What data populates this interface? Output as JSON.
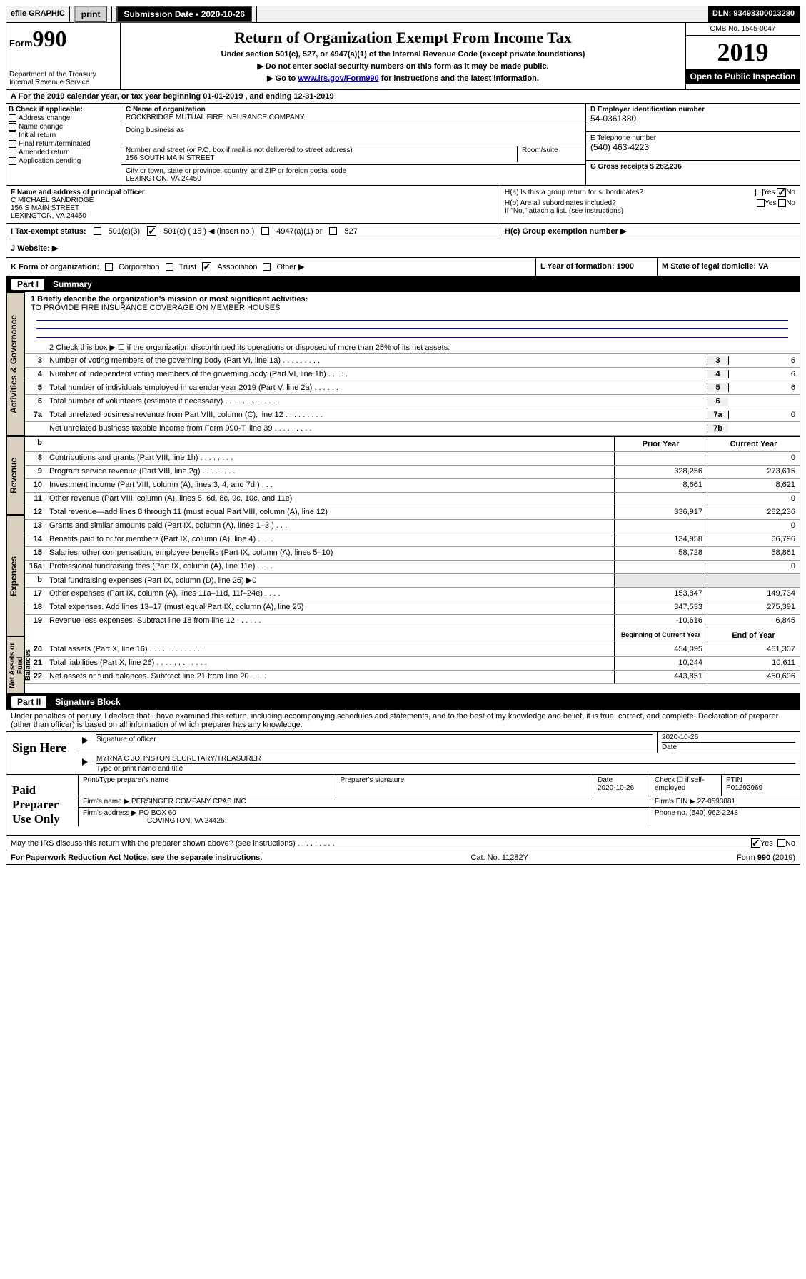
{
  "top": {
    "efile": "efile GRAPHIC",
    "print": "print",
    "subdate_label": "Submission Date • 2020-10-26",
    "dln": "DLN: 93493300013280"
  },
  "header": {
    "form_prefix": "Form",
    "form_no": "990",
    "dept": "Department of the Treasury\nInternal Revenue Service",
    "title": "Return of Organization Exempt From Income Tax",
    "line1": "Under section 501(c), 527, or 4947(a)(1) of the Internal Revenue Code (except private foundations)",
    "line2": "▶ Do not enter social security numbers on this form as it may be made public.",
    "line3_pre": "▶ Go to ",
    "line3_link": "www.irs.gov/Form990",
    "line3_post": " for instructions and the latest information.",
    "omb": "OMB No. 1545-0047",
    "year": "2019",
    "open": "Open to Public Inspection"
  },
  "rowA": "A For the 2019 calendar year, or tax year beginning 01-01-2019   , and ending 12-31-2019",
  "b_checks": [
    "Address change",
    "Name change",
    "Initial return",
    "Final return/terminated",
    "Amended return",
    "Application pending"
  ],
  "b_label": "B Check if applicable:",
  "c": {
    "name_lbl": "C Name of organization",
    "name": "ROCKBRIDGE MUTUAL FIRE INSURANCE COMPANY",
    "dba_lbl": "Doing business as",
    "addr_lbl": "Number and street (or P.O. box if mail is not delivered to street address)",
    "room_lbl": "Room/suite",
    "addr": "156 SOUTH MAIN STREET",
    "city_lbl": "City or town, state or province, country, and ZIP or foreign postal code",
    "city": "LEXINGTON, VA  24450"
  },
  "d": {
    "lbl": "D Employer identification number",
    "val": "54-0361880"
  },
  "e": {
    "lbl": "E Telephone number",
    "val": "(540) 463-4223"
  },
  "g": {
    "lbl": "G Gross receipts $ 282,236"
  },
  "f": {
    "lbl": "F  Name and address of principal officer:",
    "name": "C MICHAEL SANDRIDGE",
    "addr1": "156 S MAIN STREET",
    "addr2": "LEXINGTON, VA  24450"
  },
  "h": {
    "a": "H(a)  Is this a group return for subordinates?",
    "b": "H(b)  Are all subordinates included?",
    "note": "If \"No,\" attach a list. (see instructions)",
    "c": "H(c)  Group exemption number ▶"
  },
  "i": {
    "lbl": "I    Tax-exempt status:",
    "opts": [
      "501(c)(3)",
      "501(c) ( 15 ) ◀ (insert no.)",
      "4947(a)(1) or",
      "527"
    ]
  },
  "j": {
    "lbl": "J    Website: ▶"
  },
  "k": {
    "lbl": "K Form of organization:",
    "opts": [
      "Corporation",
      "Trust",
      "Association",
      "Other ▶"
    ]
  },
  "l": "L Year of formation: 1900",
  "m": "M State of legal domicile: VA",
  "part1": {
    "no": "Part I",
    "title": "Summary"
  },
  "p1_1_lbl": "1  Briefly describe the organization's mission or most significant activities:",
  "p1_1_val": "TO PROVIDE FIRE INSURANCE COVERAGE ON MEMBER HOUSES",
  "p1_2": "2   Check this box ▶ ☐  if the organization discontinued its operations or disposed of more than 25% of its net assets.",
  "gov_lines": [
    {
      "n": "3",
      "t": "Number of voting members of the governing body (Part VI, line 1a)  .    .    .    .    .    .    .    .    .",
      "b": "3",
      "v": "6"
    },
    {
      "n": "4",
      "t": "Number of independent voting members of the governing body (Part VI, line 1b)  .    .    .    .    .",
      "b": "4",
      "v": "6"
    },
    {
      "n": "5",
      "t": "Total number of individuals employed in calendar year 2019 (Part V, line 2a)  .    .    .    .    .    .",
      "b": "5",
      "v": "6"
    },
    {
      "n": "6",
      "t": "Total number of volunteers (estimate if necessary)  .    .    .    .    .    .    .    .    .    .    .    .    .",
      "b": "6",
      "v": ""
    },
    {
      "n": "7a",
      "t": "Total unrelated business revenue from Part VIII, column (C), line 12  .    .    .    .    .    .    .    .    .",
      "b": "7a",
      "v": "0"
    },
    {
      "n": "",
      "t": "Net unrelated business taxable income from Form 990-T, line 39  .    .    .    .    .    .    .    .    .",
      "b": "7b",
      "v": ""
    }
  ],
  "col_hdrs": {
    "prior": "Prior Year",
    "current": "Current Year",
    "boy": "Beginning of Current Year",
    "eoy": "End of Year"
  },
  "revenue": [
    {
      "n": "8",
      "t": "Contributions and grants (Part VIII, line 1h)  .    .    .    .    .    .    .    .",
      "p": "",
      "c": "0"
    },
    {
      "n": "9",
      "t": "Program service revenue (Part VIII, line 2g)  .    .    .    .    .    .    .    .",
      "p": "328,256",
      "c": "273,615"
    },
    {
      "n": "10",
      "t": "Investment income (Part VIII, column (A), lines 3, 4, and 7d )  .    .    .",
      "p": "8,661",
      "c": "8,621"
    },
    {
      "n": "11",
      "t": "Other revenue (Part VIII, column (A), lines 5, 6d, 8c, 9c, 10c, and 11e)",
      "p": "",
      "c": "0"
    },
    {
      "n": "12",
      "t": "Total revenue—add lines 8 through 11 (must equal Part VIII, column (A), line 12)",
      "p": "336,917",
      "c": "282,236"
    }
  ],
  "expenses": [
    {
      "n": "13",
      "t": "Grants and similar amounts paid (Part IX, column (A), lines 1–3 )  .    .    .",
      "p": "",
      "c": "0"
    },
    {
      "n": "14",
      "t": "Benefits paid to or for members (Part IX, column (A), line 4)  .    .    .    .",
      "p": "134,958",
      "c": "66,796"
    },
    {
      "n": "15",
      "t": "Salaries, other compensation, employee benefits (Part IX, column (A), lines 5–10)",
      "p": "58,728",
      "c": "58,861"
    },
    {
      "n": "16a",
      "t": "Professional fundraising fees (Part IX, column (A), line 11e)  .    .    .    .",
      "p": "",
      "c": "0"
    },
    {
      "n": "b",
      "t": "Total fundraising expenses (Part IX, column (D), line 25) ▶0",
      "p": "",
      "c": ""
    },
    {
      "n": "17",
      "t": "Other expenses (Part IX, column (A), lines 11a–11d, 11f–24e)  .    .    .    .",
      "p": "153,847",
      "c": "149,734"
    },
    {
      "n": "18",
      "t": "Total expenses. Add lines 13–17 (must equal Part IX, column (A), line 25)",
      "p": "347,533",
      "c": "275,391"
    },
    {
      "n": "19",
      "t": "Revenue less expenses. Subtract line 18 from line 12  .    .    .    .    .    .",
      "p": "-10,616",
      "c": "6,845"
    }
  ],
  "netassets": [
    {
      "n": "20",
      "t": "Total assets (Part X, line 16)  .    .    .    .    .    .    .    .    .    .    .    .    .",
      "p": "454,095",
      "c": "461,307"
    },
    {
      "n": "21",
      "t": "Total liabilities (Part X, line 26)  .    .    .    .    .    .    .    .    .    .    .    .",
      "p": "10,244",
      "c": "10,611"
    },
    {
      "n": "22",
      "t": "Net assets or fund balances. Subtract line 21 from line 20  .    .    .    .",
      "p": "443,851",
      "c": "450,696"
    }
  ],
  "part2": {
    "no": "Part II",
    "title": "Signature Block"
  },
  "perjury": "Under penalties of perjury, I declare that I have examined this return, including accompanying schedules and statements, and to the best of my knowledge and belief, it is true, correct, and complete. Declaration of preparer (other than officer) is based on all information of which preparer has any knowledge.",
  "sign": {
    "here": "Sign Here",
    "sig_lbl": "Signature of officer",
    "date": "2020-10-26",
    "date_lbl": "Date",
    "name": "MYRNA C JOHNSTON  SECRETARY/TREASURER",
    "name_lbl": "Type or print name and title"
  },
  "paid": {
    "title": "Paid Preparer Use Only",
    "h1": "Print/Type preparer's name",
    "h2": "Preparer's signature",
    "h3": "Date",
    "h3v": "2020-10-26",
    "h4": "Check ☐ if self-employed",
    "h5": "PTIN",
    "h5v": "P01292969",
    "firm_lbl": "Firm's name    ▶",
    "firm": "PERSINGER COMPANY CPAS INC",
    "ein_lbl": "Firm's EIN ▶",
    "ein": "27-0593881",
    "addr_lbl": "Firm's address ▶",
    "addr": "PO BOX 60",
    "addr2": "COVINGTON, VA  24426",
    "phone_lbl": "Phone no.",
    "phone": "(540) 962-2248"
  },
  "discuss": "May the IRS discuss this return with the preparer shown above? (see instructions)  .    .    .    .    .    .    .    .    .",
  "footer": {
    "l": "For Paperwork Reduction Act Notice, see the separate instructions.",
    "c": "Cat. No. 11282Y",
    "r": "Form 990 (2019)"
  },
  "yes": "Yes",
  "no": "No"
}
